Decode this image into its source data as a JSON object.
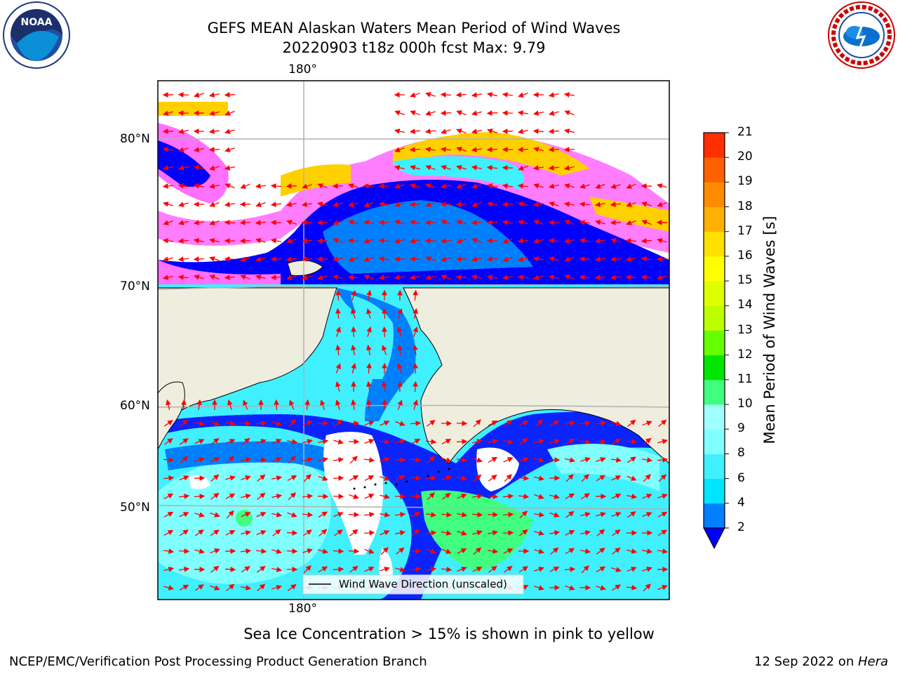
{
  "header": {
    "title_line1": "GEFS MEAN Alaskan Waters Mean Period of Wind Waves",
    "title_line2": "20220903 t18z 000h fcst   Max: 9.79"
  },
  "logos": {
    "left": {
      "name": "NOAA",
      "icon": "noaa-logo"
    },
    "right": {
      "name": "National Weather Service",
      "icon": "nws-logo"
    }
  },
  "map": {
    "lon_top_label": "180°",
    "lon_bottom_label": "180°",
    "lat_labels": [
      "80°N",
      "70°N",
      "60°N",
      "50°N"
    ],
    "legend_label": "Wind Wave Direction (unscaled)",
    "colors": {
      "land": "#efedde",
      "ocean_frame": "#000000",
      "arrow": "#ff0000",
      "grid": "#b0b0b0"
    }
  },
  "colorbar": {
    "label": "Mean Period of Wind Waves [s]",
    "ticks": [
      "2",
      "4",
      "6",
      "8",
      "9",
      "10",
      "11",
      "12",
      "13",
      "14",
      "15",
      "16",
      "17",
      "18",
      "19",
      "20",
      "21"
    ],
    "colors": [
      "#0080ff",
      "#00e5ff",
      "#40f0ff",
      "#80ffff",
      "#a0ffff",
      "#40ff80",
      "#00e600",
      "#66ff00",
      "#bbff00",
      "#ddff00",
      "#ffff00",
      "#ffe000",
      "#ffb000",
      "#ff8c00",
      "#ff6000",
      "#ff3000",
      "#ff0000"
    ],
    "under_color": "#0000ff"
  },
  "footer": {
    "note": "Sea Ice Concentration > 15% is shown in pink to yellow",
    "left": "NCEP/EMC/Verification Post Processing Product Generation Branch",
    "right_date": "12 Sep 2022 on ",
    "right_host": "Hera"
  }
}
